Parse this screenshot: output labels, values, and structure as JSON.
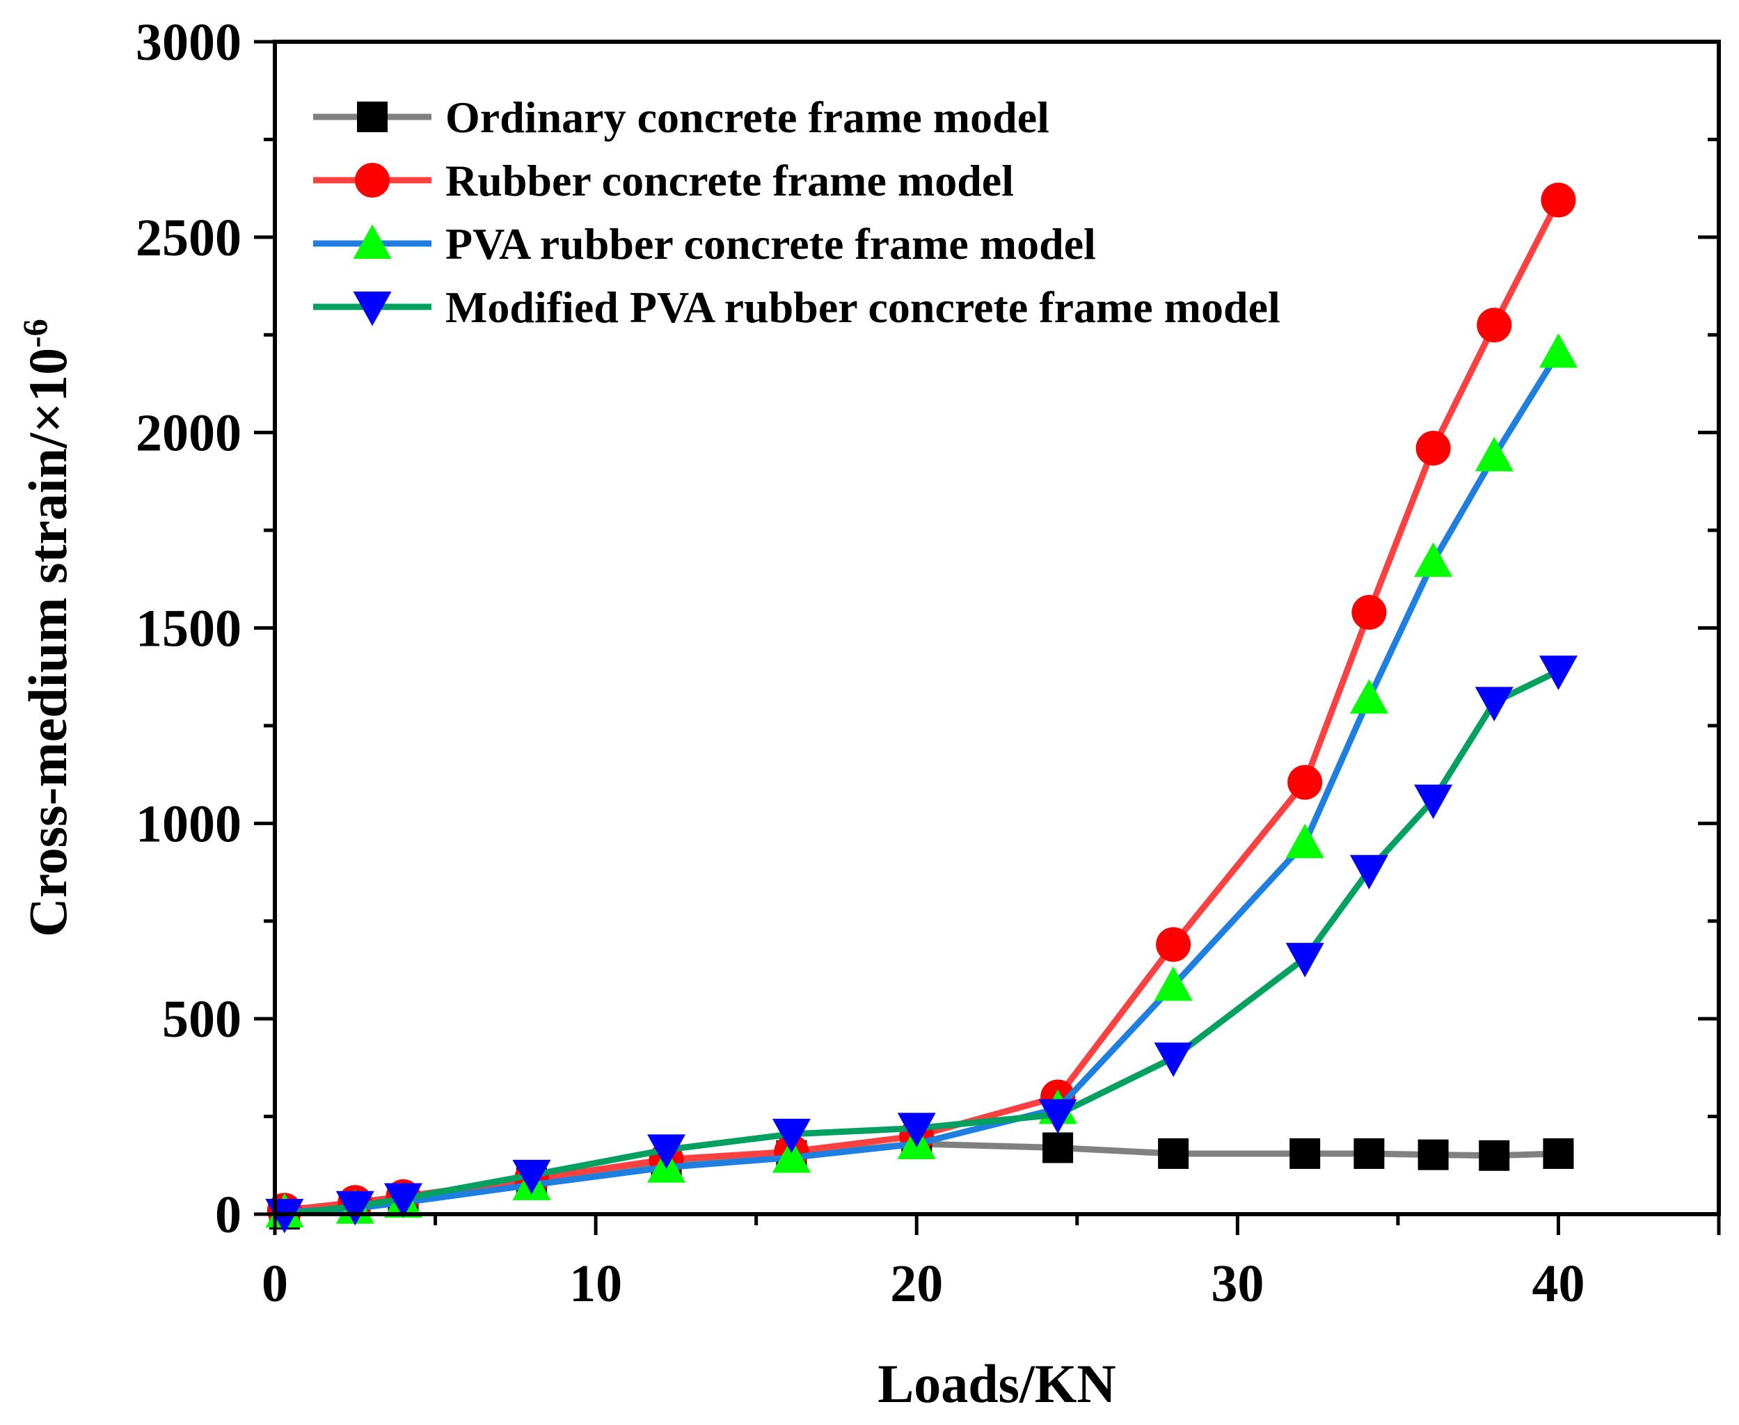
{
  "chart_data": {
    "type": "line",
    "title": "",
    "xlabel": "Loads/KN",
    "ylabel": "Cross-medium strain/×10",
    "ylabel_superscript": "-6",
    "xlim": [
      0,
      45
    ],
    "ylim": [
      0,
      3000
    ],
    "xticks": [
      0,
      10,
      20,
      30,
      40
    ],
    "yticks": [
      0,
      500,
      1000,
      1500,
      2000,
      2500,
      3000
    ],
    "grid": false,
    "legend_position": "top-left",
    "series": [
      {
        "name": "Ordinary concrete frame model",
        "line_color": "#808080",
        "marker_color": "#000000",
        "marker": "square",
        "x": [
          0.3,
          2.5,
          4,
          8,
          12.2,
          16.1,
          20,
          24.4,
          28,
          32.1,
          34.1,
          36.1,
          38,
          40
        ],
        "y": [
          0,
          15,
          35,
          80,
          125,
          150,
          180,
          170,
          155,
          155,
          155,
          152,
          150,
          155
        ]
      },
      {
        "name": "Rubber concrete frame model",
        "line_color": "#ff4040",
        "marker_color": "#ff0000",
        "marker": "circle",
        "x": [
          0.3,
          2.5,
          4,
          8,
          12.2,
          16.1,
          20,
          24.4,
          28,
          32.1,
          34.1,
          36.1,
          38,
          40
        ],
        "y": [
          10,
          30,
          45,
          90,
          140,
          160,
          200,
          300,
          690,
          1105,
          1540,
          1960,
          2275,
          2595
        ]
      },
      {
        "name": "PVA rubber concrete frame model",
        "line_color": "#1f7fe0",
        "marker_color": "#00ff00",
        "marker": "triangle-up",
        "x": [
          0.3,
          2.5,
          4,
          8,
          12.2,
          16.1,
          20,
          24.4,
          28,
          32.1,
          34.1,
          36.1,
          38,
          40
        ],
        "y": [
          5,
          15,
          30,
          75,
          120,
          145,
          180,
          270,
          585,
          950,
          1320,
          1670,
          1940,
          2205
        ]
      },
      {
        "name": "Modified PVA rubber concrete frame model",
        "line_color": "#00a060",
        "marker_color": "#0000ff",
        "marker": "triangle-down",
        "x": [
          0.3,
          2.5,
          4,
          8,
          12.2,
          16.1,
          20,
          24.4,
          28,
          32.1,
          34.1,
          36.1,
          38,
          40
        ],
        "y": [
          0,
          20,
          40,
          100,
          165,
          205,
          220,
          255,
          400,
          655,
          880,
          1060,
          1310,
          1390
        ]
      }
    ]
  }
}
